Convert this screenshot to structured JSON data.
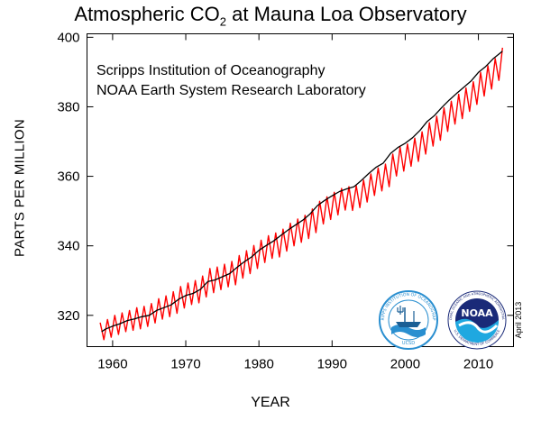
{
  "title": {
    "main": "Atmospheric CO",
    "sub": "2",
    "rest": " at Mauna Loa Observatory"
  },
  "credits": [
    "Scripps Institution of Oceanography",
    "NOAA Earth System Research Laboratory"
  ],
  "date_note": "April 2013",
  "logos": {
    "scripps": {
      "ring_text": "SCRIPPS INSTITUTION OF OCEANOGRAPHY",
      "bottom_text": "UCSD"
    },
    "noaa": {
      "center_text": "NOAA",
      "ring_text": "NATIONAL OCEANIC AND ATMOSPHERIC ADMINISTRATION",
      "bottom_text": "U.S. DEPARTMENT OF COMMERCE"
    }
  },
  "colors": {
    "monthly": "#ff0000",
    "trend": "#000000",
    "scripps_blue": "#2a8fd0",
    "noaa_navy": "#1a2a78",
    "noaa_sky": "#1fa8e0"
  },
  "chart_data": {
    "type": "line",
    "xlabel": "YEAR",
    "ylabel": "PARTS PER MILLION",
    "xlim": [
      1956.5,
      2014.8
    ],
    "ylim": [
      311,
      401
    ],
    "xticks": [
      1960,
      1970,
      1980,
      1990,
      2000,
      2010
    ],
    "yticks": [
      320,
      340,
      360,
      380,
      400
    ],
    "grid": false,
    "series": [
      {
        "style": "seasonal monthly mean (red)",
        "x": [
          1958.3,
          1958.8,
          1959.3,
          1959.8,
          1960.3,
          1960.8,
          1961.3,
          1961.8,
          1962.3,
          1962.8,
          1963.3,
          1963.8,
          1964.3,
          1964.8,
          1965.3,
          1965.8,
          1966.3,
          1966.8,
          1967.3,
          1967.8,
          1968.3,
          1968.8,
          1969.3,
          1969.8,
          1970.3,
          1970.8,
          1971.3,
          1971.8,
          1972.3,
          1972.8,
          1973.3,
          1973.8,
          1974.3,
          1974.8,
          1975.3,
          1975.8,
          1976.3,
          1976.8,
          1977.3,
          1977.8,
          1978.3,
          1978.8,
          1979.3,
          1979.8,
          1980.3,
          1980.8,
          1981.3,
          1981.8,
          1982.3,
          1982.8,
          1983.3,
          1983.8,
          1984.3,
          1984.8,
          1985.3,
          1985.8,
          1986.3,
          1986.8,
          1987.3,
          1987.8,
          1988.3,
          1988.8,
          1989.3,
          1989.8,
          1990.3,
          1990.8,
          1991.3,
          1991.8,
          1992.3,
          1992.8,
          1993.3,
          1993.8,
          1994.3,
          1994.8,
          1995.3,
          1995.8,
          1996.3,
          1996.8,
          1997.3,
          1997.8,
          1998.3,
          1998.8,
          1999.3,
          1999.8,
          2000.3,
          2000.8,
          2001.3,
          2001.8,
          2002.3,
          2002.8,
          2003.3,
          2003.8,
          2004.3,
          2004.8,
          2005.3,
          2005.8,
          2006.3,
          2006.8,
          2007.3,
          2007.8,
          2008.3,
          2008.8,
          2009.3,
          2009.8,
          2010.3,
          2010.8,
          2011.3,
          2011.8,
          2012.3,
          2012.8,
          2013.3
        ],
        "values": [
          317.9,
          313.0,
          318.8,
          313.7,
          320.0,
          314.5,
          320.7,
          315.3,
          321.4,
          315.7,
          322.2,
          316.1,
          322.6,
          316.8,
          323.4,
          317.8,
          324.8,
          318.9,
          325.6,
          319.6,
          326.8,
          320.6,
          328.3,
          322.1,
          329.3,
          323.1,
          330.0,
          323.6,
          331.3,
          325.3,
          333.5,
          326.5,
          333.9,
          327.4,
          334.7,
          328.2,
          335.5,
          328.8,
          337.2,
          330.7,
          338.6,
          332.0,
          340.1,
          333.5,
          341.6,
          335.2,
          342.9,
          336.4,
          343.7,
          336.8,
          344.8,
          338.5,
          346.5,
          340.0,
          347.7,
          341.0,
          348.8,
          342.1,
          350.6,
          343.8,
          352.8,
          346.3,
          354.1,
          347.6,
          355.4,
          348.9,
          356.5,
          350.3,
          357.0,
          350.2,
          357.3,
          351.0,
          358.9,
          352.6,
          360.7,
          354.5,
          362.4,
          355.8,
          363.5,
          357.0,
          366.4,
          360.1,
          368.4,
          361.5,
          369.3,
          362.9,
          371.0,
          364.3,
          372.8,
          366.4,
          375.4,
          368.7,
          377.3,
          370.4,
          379.7,
          372.9,
          381.6,
          375.0,
          383.6,
          376.6,
          385.4,
          378.7,
          387.2,
          380.7,
          389.9,
          383.1,
          391.8,
          385.1,
          393.9,
          387.6,
          397.0
        ]
      },
      {
        "style": "seasonally corrected trend (black)",
        "x": [
          1958.5,
          1959,
          1960,
          1961,
          1962,
          1963,
          1964,
          1965,
          1966,
          1967,
          1968,
          1969,
          1970,
          1971,
          1972,
          1973,
          1974,
          1975,
          1976,
          1977,
          1978,
          1979,
          1980,
          1981,
          1982,
          1983,
          1984,
          1985,
          1986,
          1987,
          1988,
          1989,
          1990,
          1991,
          1992,
          1993,
          1994,
          1995,
          1996,
          1997,
          1998,
          1999,
          2000,
          2001,
          2002,
          2003,
          2004,
          2005,
          2006,
          2007,
          2008,
          2009,
          2010,
          2011,
          2012,
          2013.3
        ],
        "values": [
          315.3,
          316.0,
          316.9,
          317.6,
          318.5,
          319.0,
          319.6,
          320.0,
          321.4,
          322.2,
          323.0,
          324.6,
          325.7,
          326.3,
          327.5,
          329.7,
          330.2,
          331.1,
          332.0,
          333.8,
          335.4,
          336.8,
          338.7,
          340.1,
          341.4,
          343.0,
          344.6,
          346.0,
          347.4,
          349.2,
          351.6,
          353.1,
          354.4,
          355.6,
          356.4,
          357.0,
          358.8,
          360.8,
          362.6,
          363.8,
          366.6,
          368.3,
          369.5,
          371.1,
          373.2,
          375.8,
          377.5,
          379.8,
          381.9,
          383.8,
          385.6,
          387.4,
          389.9,
          391.6,
          393.8,
          396.0
        ]
      }
    ]
  }
}
